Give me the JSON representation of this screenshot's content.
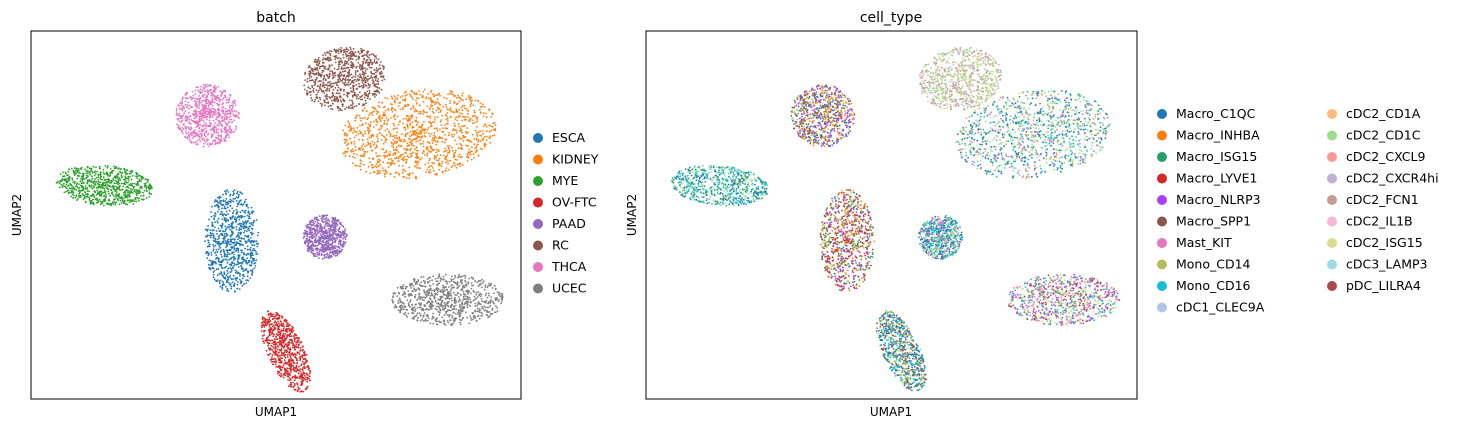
{
  "chart_data": [
    {
      "type": "scatter",
      "title": "batch",
      "xlabel": "UMAP1",
      "ylabel": "UMAP2",
      "grid": false,
      "legend_position": "right",
      "legend": [
        {
          "label": "ESCA",
          "color": "#1f77b4"
        },
        {
          "label": "KIDNEY",
          "color": "#ff7f0e"
        },
        {
          "label": "MYE",
          "color": "#2ca02c"
        },
        {
          "label": "OV-FTC",
          "color": "#d62728"
        },
        {
          "label": "PAAD",
          "color": "#9467bd"
        },
        {
          "label": "RC",
          "color": "#8c564b"
        },
        {
          "label": "THCA",
          "color": "#e377c2"
        },
        {
          "label": "UCEC",
          "color": "#7f7f7f"
        }
      ],
      "clusters": [
        {
          "label": "ESCA",
          "cx": 0.41,
          "cy": 0.57,
          "rx": 0.055,
          "ry": 0.14,
          "rot": 0,
          "mix": [
            "#1f77b4"
          ]
        },
        {
          "label": "KIDNEY",
          "cx": 0.79,
          "cy": 0.28,
          "rx": 0.16,
          "ry": 0.12,
          "rot": -8,
          "mix": [
            "#ff7f0e"
          ]
        },
        {
          "label": "MYE",
          "cx": 0.15,
          "cy": 0.42,
          "rx": 0.1,
          "ry": 0.055,
          "rot": 5,
          "mix": [
            "#2ca02c"
          ]
        },
        {
          "label": "OV-FTC",
          "cx": 0.52,
          "cy": 0.87,
          "rx": 0.037,
          "ry": 0.12,
          "rot": -25,
          "mix": [
            "#d62728"
          ]
        },
        {
          "label": "PAAD",
          "cx": 0.6,
          "cy": 0.56,
          "rx": 0.045,
          "ry": 0.06,
          "rot": -15,
          "mix": [
            "#9467bd"
          ]
        },
        {
          "label": "RC",
          "cx": 0.64,
          "cy": 0.13,
          "rx": 0.085,
          "ry": 0.085,
          "rot": -10,
          "mix": [
            "#8c564b"
          ]
        },
        {
          "label": "THCA",
          "cx": 0.36,
          "cy": 0.23,
          "rx": 0.065,
          "ry": 0.085,
          "rot": 10,
          "mix": [
            "#e377c2"
          ]
        },
        {
          "label": "UCEC",
          "cx": 0.85,
          "cy": 0.73,
          "rx": 0.115,
          "ry": 0.07,
          "rot": 0,
          "mix": [
            "#7f7f7f"
          ]
        }
      ]
    },
    {
      "type": "scatter",
      "title": "cell_type",
      "xlabel": "UMAP1",
      "ylabel": "UMAP2",
      "grid": false,
      "legend_position": "right",
      "legend": [
        {
          "label": "Macro_C1QC",
          "color": "#1f77b4"
        },
        {
          "label": "Macro_INHBA",
          "color": "#ff7f0e"
        },
        {
          "label": "Macro_ISG15",
          "color": "#279e68"
        },
        {
          "label": "Macro_LYVE1",
          "color": "#d62728"
        },
        {
          "label": "Macro_NLRP3",
          "color": "#aa40fc"
        },
        {
          "label": "Macro_SPP1",
          "color": "#8c564b"
        },
        {
          "label": "Mast_KIT",
          "color": "#e377c2"
        },
        {
          "label": "Mono_CD14",
          "color": "#b5bd61"
        },
        {
          "label": "Mono_CD16",
          "color": "#17becf"
        },
        {
          "label": "cDC1_CLEC9A",
          "color": "#aec7e8"
        },
        {
          "label": "cDC2_CD1A",
          "color": "#ffbb78"
        },
        {
          "label": "cDC2_CD1C",
          "color": "#98df8a"
        },
        {
          "label": "cDC2_CXCL9",
          "color": "#ff9896"
        },
        {
          "label": "cDC2_CXCR4hi",
          "color": "#c5b0d5"
        },
        {
          "label": "cDC2_FCN1",
          "color": "#c49c94"
        },
        {
          "label": "cDC2_IL1B",
          "color": "#f7b6d2"
        },
        {
          "label": "cDC2_ISG15",
          "color": "#dbdb8d"
        },
        {
          "label": "cDC3_LAMP3",
          "color": "#9edae5"
        },
        {
          "label": "pDC_LILRA4",
          "color": "#ad494a"
        }
      ],
      "clusters": [
        {
          "label": "ESCA",
          "cx": 0.41,
          "cy": 0.57,
          "rx": 0.055,
          "ry": 0.14,
          "rot": 0,
          "mix": [
            "#d62728",
            "#aa40fc",
            "#8c564b",
            "#b5bd61",
            "#279e68",
            "#ff7f0e"
          ]
        },
        {
          "label": "KIDNEY",
          "cx": 0.79,
          "cy": 0.28,
          "rx": 0.16,
          "ry": 0.12,
          "rot": -8,
          "mix": [
            "#98df8a",
            "#17becf",
            "#279e68",
            "#9edae5",
            "#1f77b4",
            "#b5bd61",
            "#e377c2"
          ]
        },
        {
          "label": "MYE",
          "cx": 0.15,
          "cy": 0.42,
          "rx": 0.1,
          "ry": 0.055,
          "rot": 5,
          "mix": [
            "#9edae5",
            "#279e68",
            "#17becf",
            "#1f77b4",
            "#98df8a"
          ]
        },
        {
          "label": "OV-FTC",
          "cx": 0.52,
          "cy": 0.87,
          "rx": 0.037,
          "ry": 0.12,
          "rot": -25,
          "mix": [
            "#1f77b4",
            "#8c564b",
            "#17becf",
            "#b5bd61"
          ]
        },
        {
          "label": "PAAD",
          "cx": 0.6,
          "cy": 0.56,
          "rx": 0.045,
          "ry": 0.06,
          "rot": -15,
          "mix": [
            "#98df8a",
            "#e377c2",
            "#1f77b4",
            "#17becf"
          ]
        },
        {
          "label": "RC",
          "cx": 0.64,
          "cy": 0.13,
          "rx": 0.085,
          "ry": 0.085,
          "rot": -10,
          "mix": [
            "#dbdb8d",
            "#c5b0d5",
            "#98df8a",
            "#c49c94"
          ]
        },
        {
          "label": "THCA",
          "cx": 0.36,
          "cy": 0.23,
          "rx": 0.065,
          "ry": 0.085,
          "rot": 10,
          "mix": [
            "#ff7f0e",
            "#aa40fc",
            "#1f77b4",
            "#b5bd61",
            "#8c564b"
          ]
        },
        {
          "label": "UCEC",
          "cx": 0.85,
          "cy": 0.73,
          "rx": 0.115,
          "ry": 0.07,
          "rot": 0,
          "mix": [
            "#b5bd61",
            "#e377c2",
            "#aa40fc",
            "#17becf",
            "#8c564b",
            "#dbdb8d"
          ]
        }
      ]
    }
  ]
}
